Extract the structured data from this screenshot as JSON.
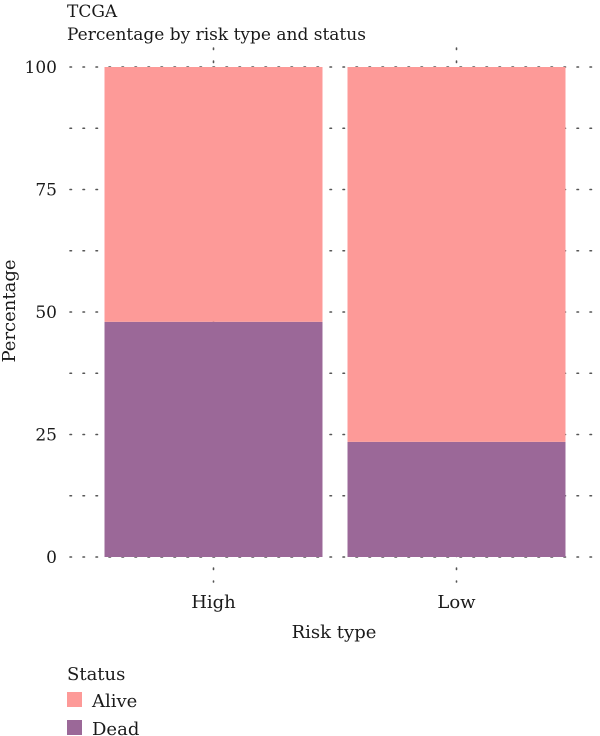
{
  "chart_data": {
    "type": "bar",
    "stacked": true,
    "title": "TCGA",
    "subtitle": "Percentage by risk type and status",
    "xlabel": "Risk type",
    "ylabel": "Percentage",
    "categories": [
      "High",
      "Low"
    ],
    "ylim": [
      0,
      100
    ],
    "yticks": [
      0,
      25,
      50,
      75,
      100
    ],
    "grid": "dotted",
    "series": [
      {
        "name": "Dead",
        "color": "#9b6898",
        "values": [
          48,
          23.5
        ]
      },
      {
        "name": "Alive",
        "color": "#fd9a98",
        "values": [
          52,
          76.5
        ]
      }
    ],
    "legend": {
      "title": "Status",
      "position": "bottom-left",
      "items": [
        {
          "label": "Alive",
          "color": "#fd9a98"
        },
        {
          "label": "Dead",
          "color": "#9b6898"
        }
      ]
    }
  }
}
